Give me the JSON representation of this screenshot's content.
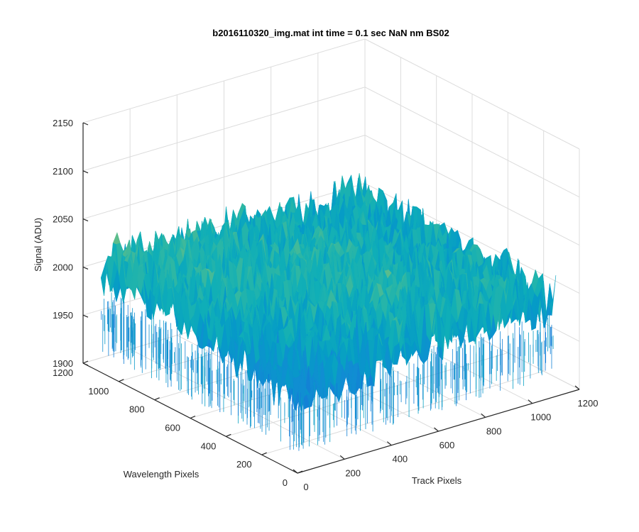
{
  "chart_data": {
    "type": "surface",
    "title": "b2016110320_img.mat int time = 0.1 sec  NaN nm BS02",
    "xlabel": "Track Pixels",
    "ylabel": "Wavelength Pixels",
    "zlabel": "Signal (ADU)",
    "xlim": [
      0,
      1200
    ],
    "ylim": [
      0,
      1200
    ],
    "zlim": [
      1900,
      2150
    ],
    "xticks": [
      0,
      200,
      400,
      600,
      800,
      1000,
      1200
    ],
    "yticks": [
      0,
      200,
      400,
      600,
      800,
      1000,
      1200
    ],
    "zticks": [
      1900,
      1950,
      2000,
      2050,
      2100,
      2150
    ],
    "x_range_data": [
      0,
      1100
    ],
    "y_range_data": [
      0,
      1100
    ],
    "z_typical_range": [
      1950,
      2080
    ],
    "z_trend": "signal increases toward high track pixels and high wavelength pixels",
    "colormap": "parula",
    "grid": true
  }
}
